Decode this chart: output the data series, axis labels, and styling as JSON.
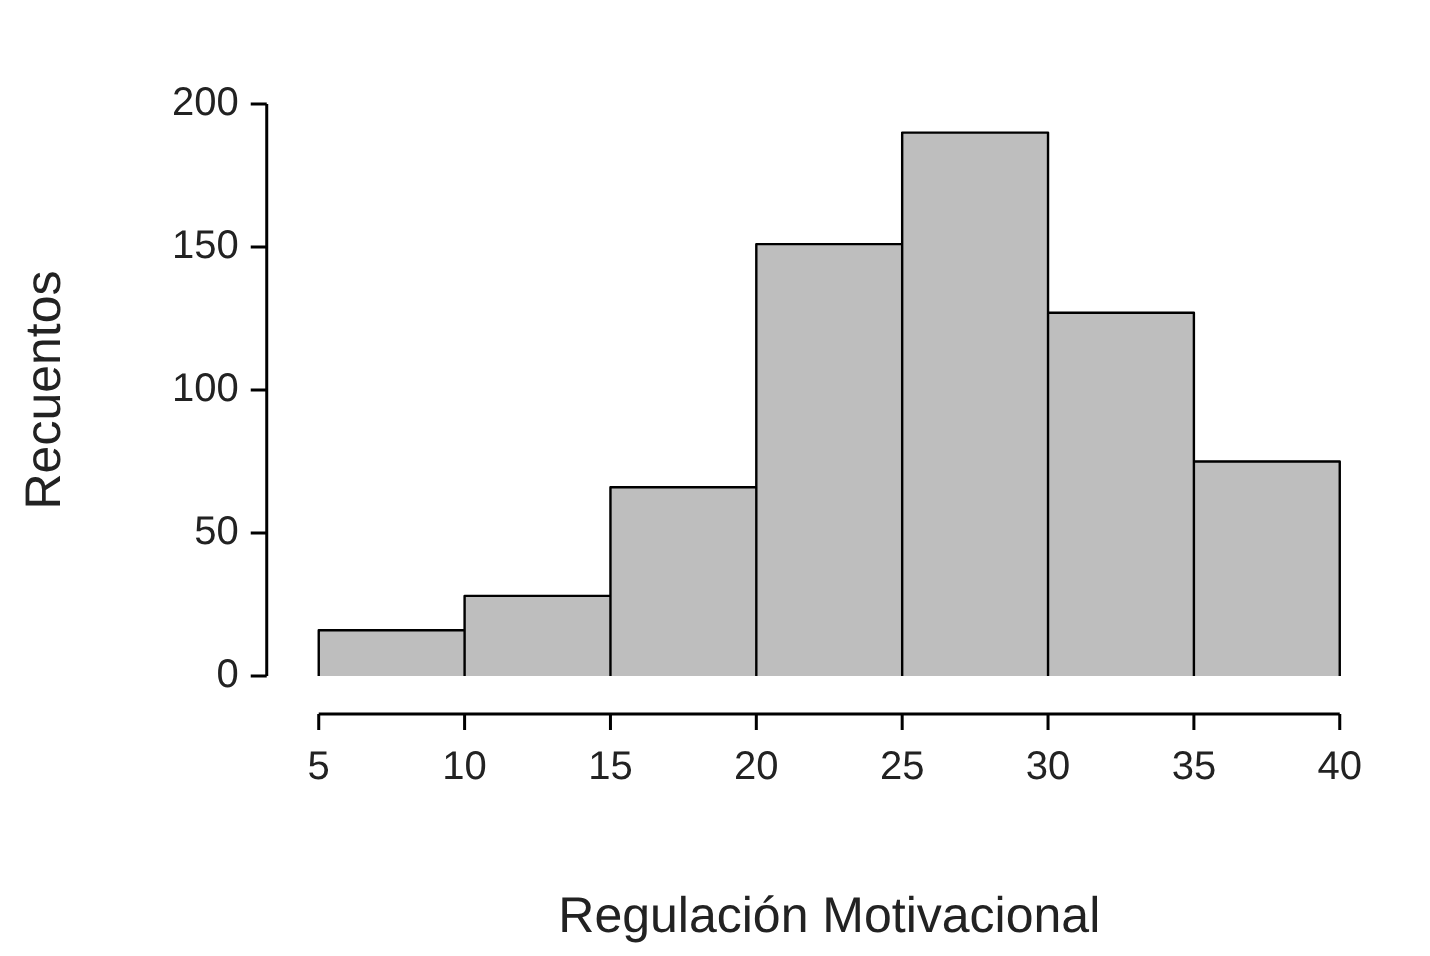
{
  "chart_data": {
    "type": "histogram",
    "xlabel": "Regulación Motivacional",
    "ylabel": "Recuentos",
    "bins": [
      5,
      10,
      15,
      20,
      25,
      30,
      35,
      40
    ],
    "values": [
      16,
      28,
      66,
      151,
      190,
      127,
      75
    ],
    "color": "#bebebe",
    "xlim": [
      5,
      40
    ],
    "xticks": [
      5,
      10,
      15,
      20,
      25,
      30,
      35,
      40
    ],
    "ylim": [
      0,
      200
    ],
    "yticks": [
      0,
      50,
      100,
      150,
      200
    ]
  }
}
